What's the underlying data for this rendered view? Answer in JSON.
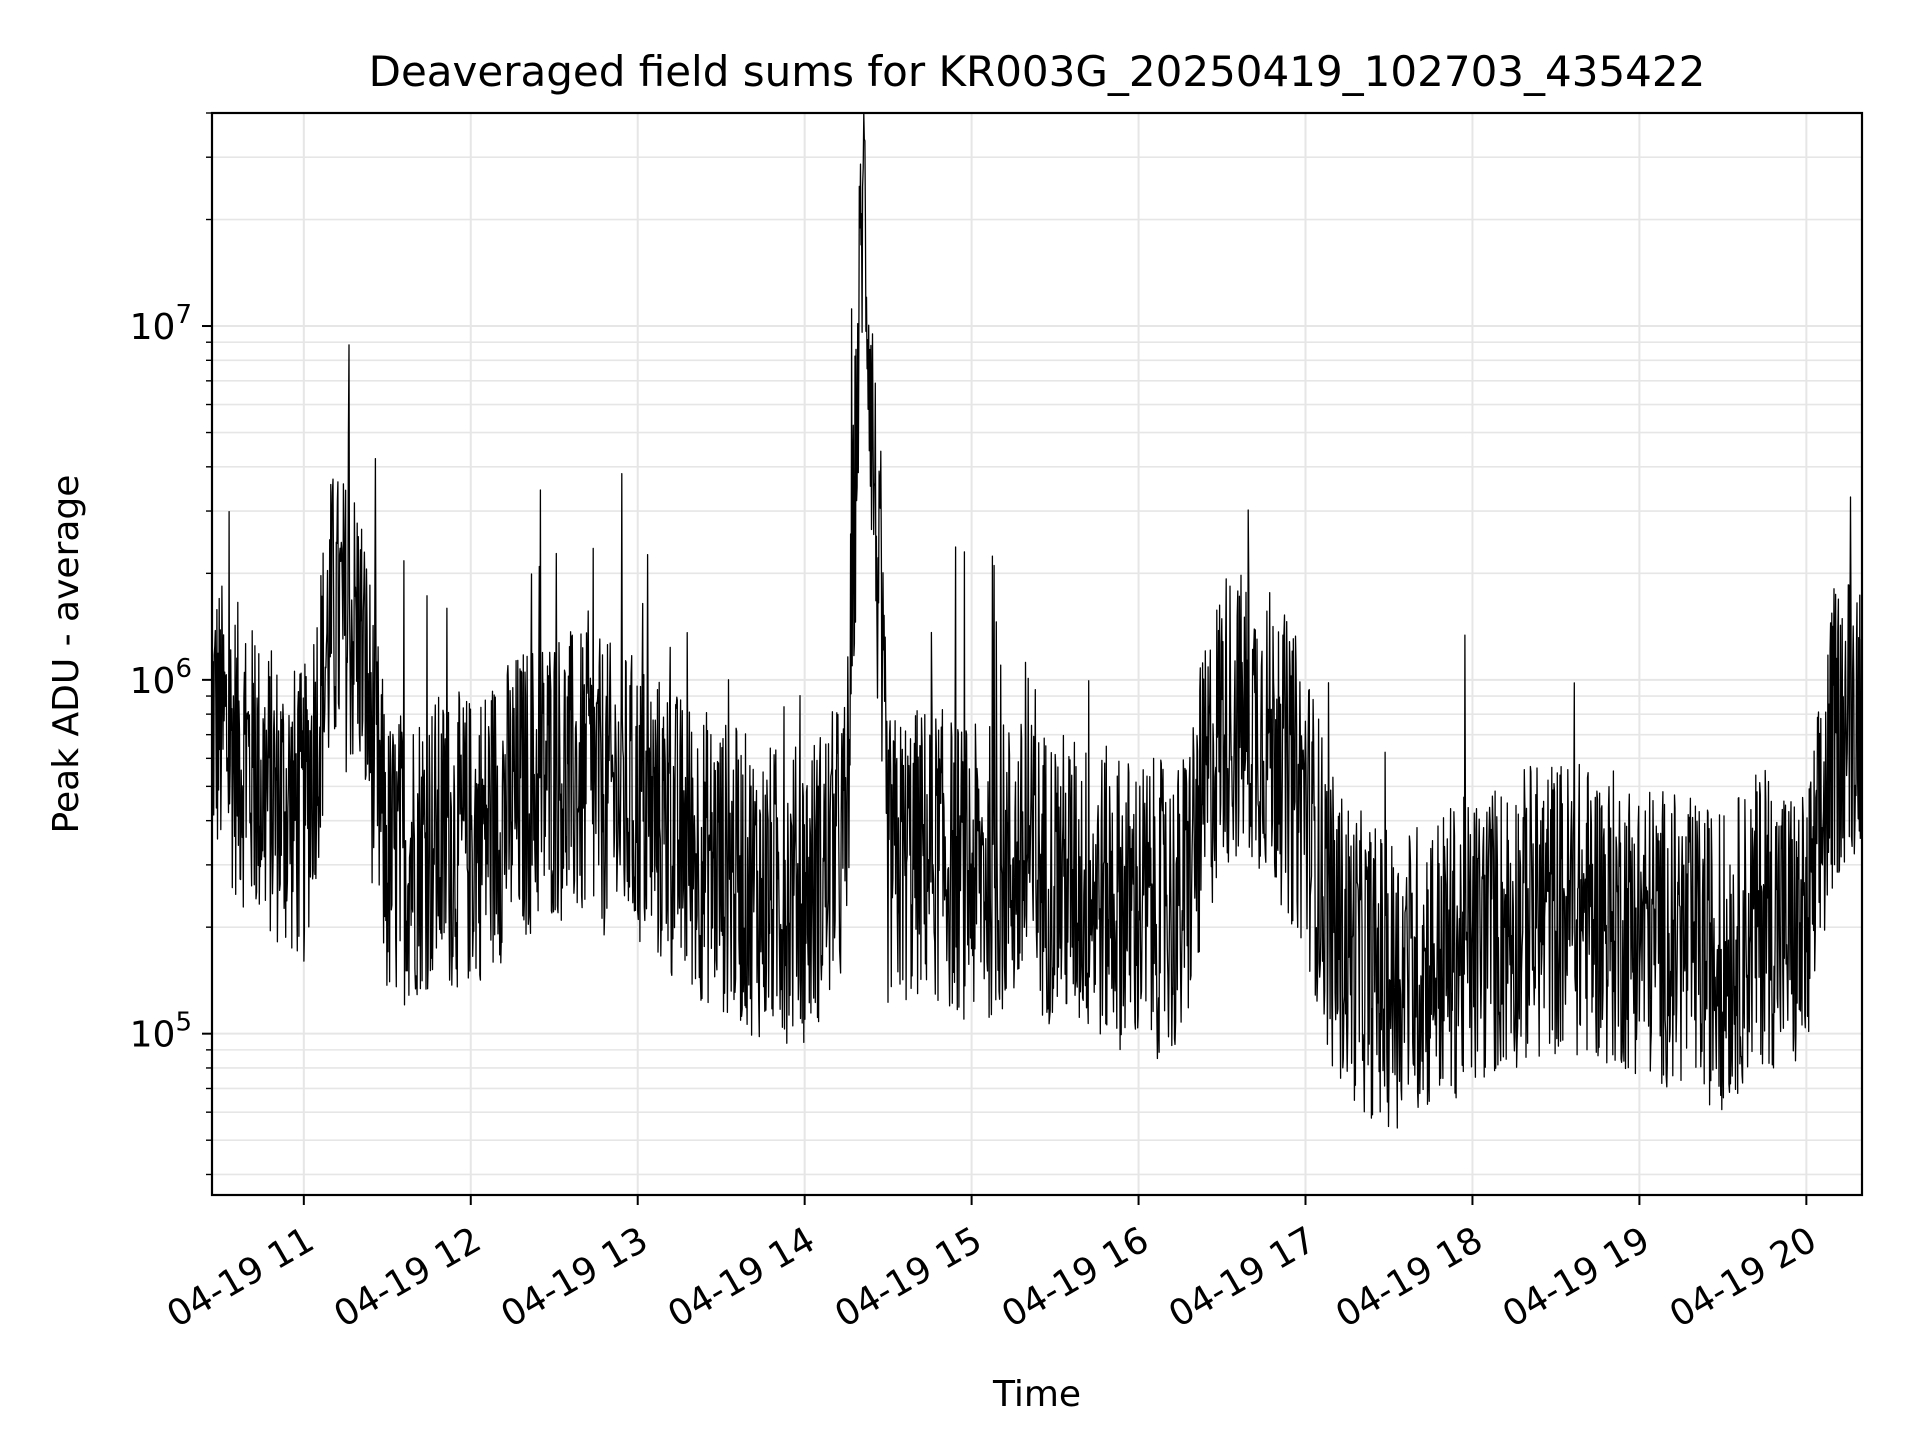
{
  "chart_data": {
    "type": "line",
    "title": "Deaveraged field sums for KR003G_20250419_102703_435422",
    "xlabel": "Time",
    "ylabel": "Peak ADU - average",
    "x_tick_labels": [
      "04-19 11",
      "04-19 12",
      "04-19 13",
      "04-19 14",
      "04-19 15",
      "04-19 16",
      "04-19 17",
      "04-19 18",
      "04-19 19",
      "04-19 20"
    ],
    "xlim": [
      "2025-04-19 10:27",
      "2025-04-19 20:20"
    ],
    "yscale": "log",
    "y_major_ticks": [
      {
        "base": "10",
        "exp": "5",
        "value": 100000
      },
      {
        "base": "10",
        "exp": "6",
        "value": 1000000
      },
      {
        "base": "10",
        "exp": "7",
        "value": 10000000
      }
    ],
    "ylim": [
      35000,
      40000000
    ],
    "grid": true,
    "line_color": "#000000",
    "grid_color": "#e6e6e6",
    "series": [
      {
        "x": [
          "2025-04-19 10:27",
          "2025-04-19 10:45",
          "2025-04-19 11:00",
          "2025-04-19 11:10",
          "2025-04-19 11:20",
          "2025-04-19 11:30",
          "2025-04-19 11:45",
          "2025-04-19 12:00",
          "2025-04-19 12:15",
          "2025-04-19 12:30",
          "2025-04-19 12:45",
          "2025-04-19 13:00",
          "2025-04-19 13:15",
          "2025-04-19 13:30",
          "2025-04-19 13:45",
          "2025-04-19 14:00",
          "2025-04-19 14:15",
          "2025-04-19 14:21",
          "2025-04-19 14:30",
          "2025-04-19 14:45",
          "2025-04-19 15:00",
          "2025-04-19 15:15",
          "2025-04-19 15:30",
          "2025-04-19 15:45",
          "2025-04-19 16:00",
          "2025-04-19 16:15",
          "2025-04-19 16:30",
          "2025-04-19 16:45",
          "2025-04-19 17:00",
          "2025-04-19 17:10",
          "2025-04-19 17:20",
          "2025-04-19 17:30",
          "2025-04-19 17:45",
          "2025-04-19 18:00",
          "2025-04-19 18:15",
          "2025-04-19 18:30",
          "2025-04-19 18:45",
          "2025-04-19 19:00",
          "2025-04-19 19:15",
          "2025-04-19 19:30",
          "2025-04-19 19:45",
          "2025-04-19 20:00",
          "2025-04-19 20:10",
          "2025-04-19 20:20"
        ],
        "y": [
          800000,
          500000,
          400000,
          1500000,
          1400000,
          300000,
          350000,
          350000,
          450000,
          550000,
          500000,
          450000,
          350000,
          300000,
          250000,
          250000,
          350000,
          28000000,
          300000,
          330000,
          280000,
          300000,
          280000,
          250000,
          230000,
          220000,
          800000,
          750000,
          450000,
          200000,
          160000,
          140000,
          160000,
          180000,
          210000,
          230000,
          220000,
          200000,
          180000,
          160000,
          220000,
          180000,
          700000,
          900000
        ]
      }
    ]
  }
}
